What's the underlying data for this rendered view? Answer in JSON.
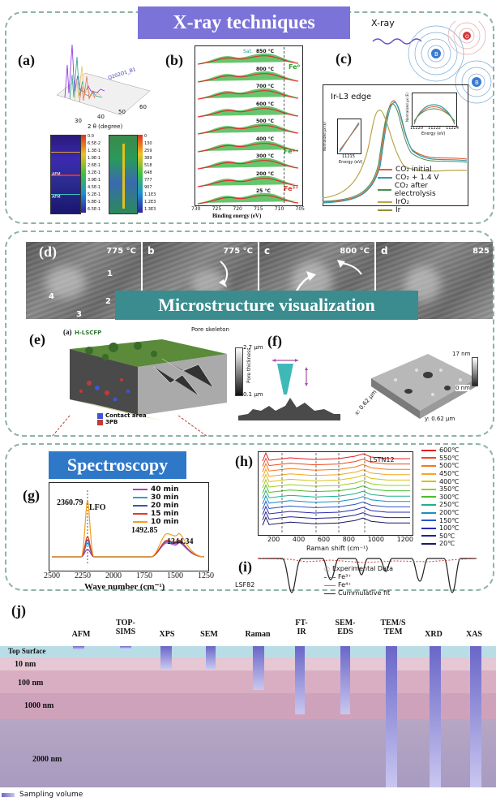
{
  "sections": {
    "xray_title": "X-ray techniques",
    "micro_title": "Microstructure visualization",
    "spectro_title": "Spectroscopy"
  },
  "panels": {
    "a": "(a)",
    "b": "(b)",
    "c": "(c)",
    "d": "(d)",
    "e": "(e)",
    "f": "(f)",
    "g": "(g)",
    "h": "(h)",
    "i": "(i)",
    "j": "(j)"
  },
  "panel_a": {
    "axis_label": "2 θ (degree)",
    "ticks": [
      "30",
      "40",
      "50",
      "60"
    ],
    "label_top": "Q202O1_B1",
    "scale_left": [
      "0.0",
      "6.5E-2",
      "1.3E-1",
      "1.9E-1",
      "2.6E-1",
      "3.2E-1",
      "3.9E-1",
      "4.5E-1",
      "5.2E-1",
      "5.8E-1",
      "6.5E-1"
    ],
    "scale_right": [
      "0",
      "130",
      "259",
      "389",
      "518",
      "648",
      "777",
      "907",
      "1.1E3",
      "1.2E3",
      "1.3E3"
    ],
    "labels": [
      "AFM",
      "AFM"
    ]
  },
  "panel_b": {
    "xlabel": "Binding energy (eV)",
    "xticks": [
      "730",
      "725",
      "720",
      "715",
      "710",
      "705"
    ],
    "temps": [
      "850 °C",
      "800 °C",
      "700 °C",
      "600 °C",
      "500 °C",
      "400 °C",
      "300 °C",
      "200 °C",
      "25 °C"
    ],
    "fe_labels": [
      "Fe⁰",
      "Fe²⁺",
      "Fe³⁺"
    ],
    "sat_label": "Sat."
  },
  "panel_c": {
    "xray_label": "X-ray",
    "atom_labels": [
      "O",
      "B",
      "B"
    ],
    "edge_label": "Ir-L3 edge",
    "inset_xlabel": "Energy (eV)",
    "inset_ylabel": "Normalized μx (E)",
    "inset_left_tick": "11215",
    "inset_right_ticks": [
      "11220",
      "11222",
      "11224"
    ],
    "legend": [
      "CO₂ initial",
      "CO₂ + 1.4 V",
      "CO₂ after electrolysis",
      "IrO₂",
      "Ir"
    ],
    "colors": {
      "co2_initial": "#e0603a",
      "co2_14v": "#2e9bb0",
      "co2_after": "#4a8f4f",
      "iro2": "#b9a64a",
      "ir": "#8f8f3a"
    }
  },
  "panel_d": {
    "frames": [
      {
        "letter": "",
        "temp": "775 °C",
        "nums": [
          "1",
          "2",
          "3",
          "4"
        ]
      },
      {
        "letter": "b",
        "temp": "775 °C"
      },
      {
        "letter": "c",
        "temp": "800 °C"
      },
      {
        "letter": "d",
        "temp": "825"
      }
    ]
  },
  "panel_e": {
    "sub": "(a)",
    "name": "H-LSCFP",
    "pore_label": "Pore skeleton",
    "scale_top": "2.7 μm",
    "scale_bottom": "0.1 μm",
    "scale_axis": "Pore thickness",
    "legend": [
      "Contact area",
      "3PB"
    ],
    "legend_colors": [
      "#3b57d6",
      "#c23a3a"
    ]
  },
  "panel_f": {
    "z_top": "17 nm",
    "z_bottom": "0 nm",
    "x_label": "x: 0.62 μm",
    "y_label": "y: 0.62 μm"
  },
  "panel_g": {
    "sample": "LFO",
    "peak1": "2360.79",
    "peak2": "1492.85",
    "peak3": "1344.34",
    "xlabel": "Wave number (cm⁻¹)",
    "xticks": [
      "2500",
      "2250",
      "2000",
      "1750",
      "1500",
      "1250"
    ],
    "legend": [
      "40 min",
      "30 min",
      "20 min",
      "15 min",
      "10 min"
    ],
    "colors": [
      "#b23bb8",
      "#2da3c9",
      "#3b56b8",
      "#e03a2a",
      "#f0a020"
    ]
  },
  "panel_h": {
    "sample": "LSTN12",
    "xlabel": "Raman shift (cm⁻¹)",
    "xticks": [
      "200",
      "400",
      "600",
      "800",
      "1000",
      "1200"
    ],
    "legend": [
      "600℃",
      "550℃",
      "500℃",
      "450℃",
      "400℃",
      "350℃",
      "300℃",
      "250℃",
      "200℃",
      "150℃",
      "100℃",
      "50℃",
      "20℃"
    ],
    "colors": [
      "#e02020",
      "#ee4a1a",
      "#f27a1c",
      "#f5a520",
      "#d6c21c",
      "#9fcc22",
      "#4bbd2c",
      "#1fb08a",
      "#1a8ec0",
      "#2a56c8",
      "#2a2ab0",
      "#22228c",
      "#1a1a66"
    ]
  },
  "panel_i": {
    "sample": "LSF82",
    "legend": [
      "Experimental Data",
      "Fe³⁺",
      "Fe⁴⁺",
      "Cummulative fit"
    ]
  },
  "panel_j": {
    "techniques": [
      "AFM",
      "TOP-SIMS",
      "XPS",
      "SEM",
      "Raman",
      "FT-IR",
      "SEM-EDS",
      "TEM/S TEM",
      "XRD",
      "XAS"
    ],
    "depths": [
      "Top Surface",
      "10 nm",
      "100 nm",
      "1000 nm",
      "2000 nm"
    ],
    "legend": "Sampling volume"
  }
}
